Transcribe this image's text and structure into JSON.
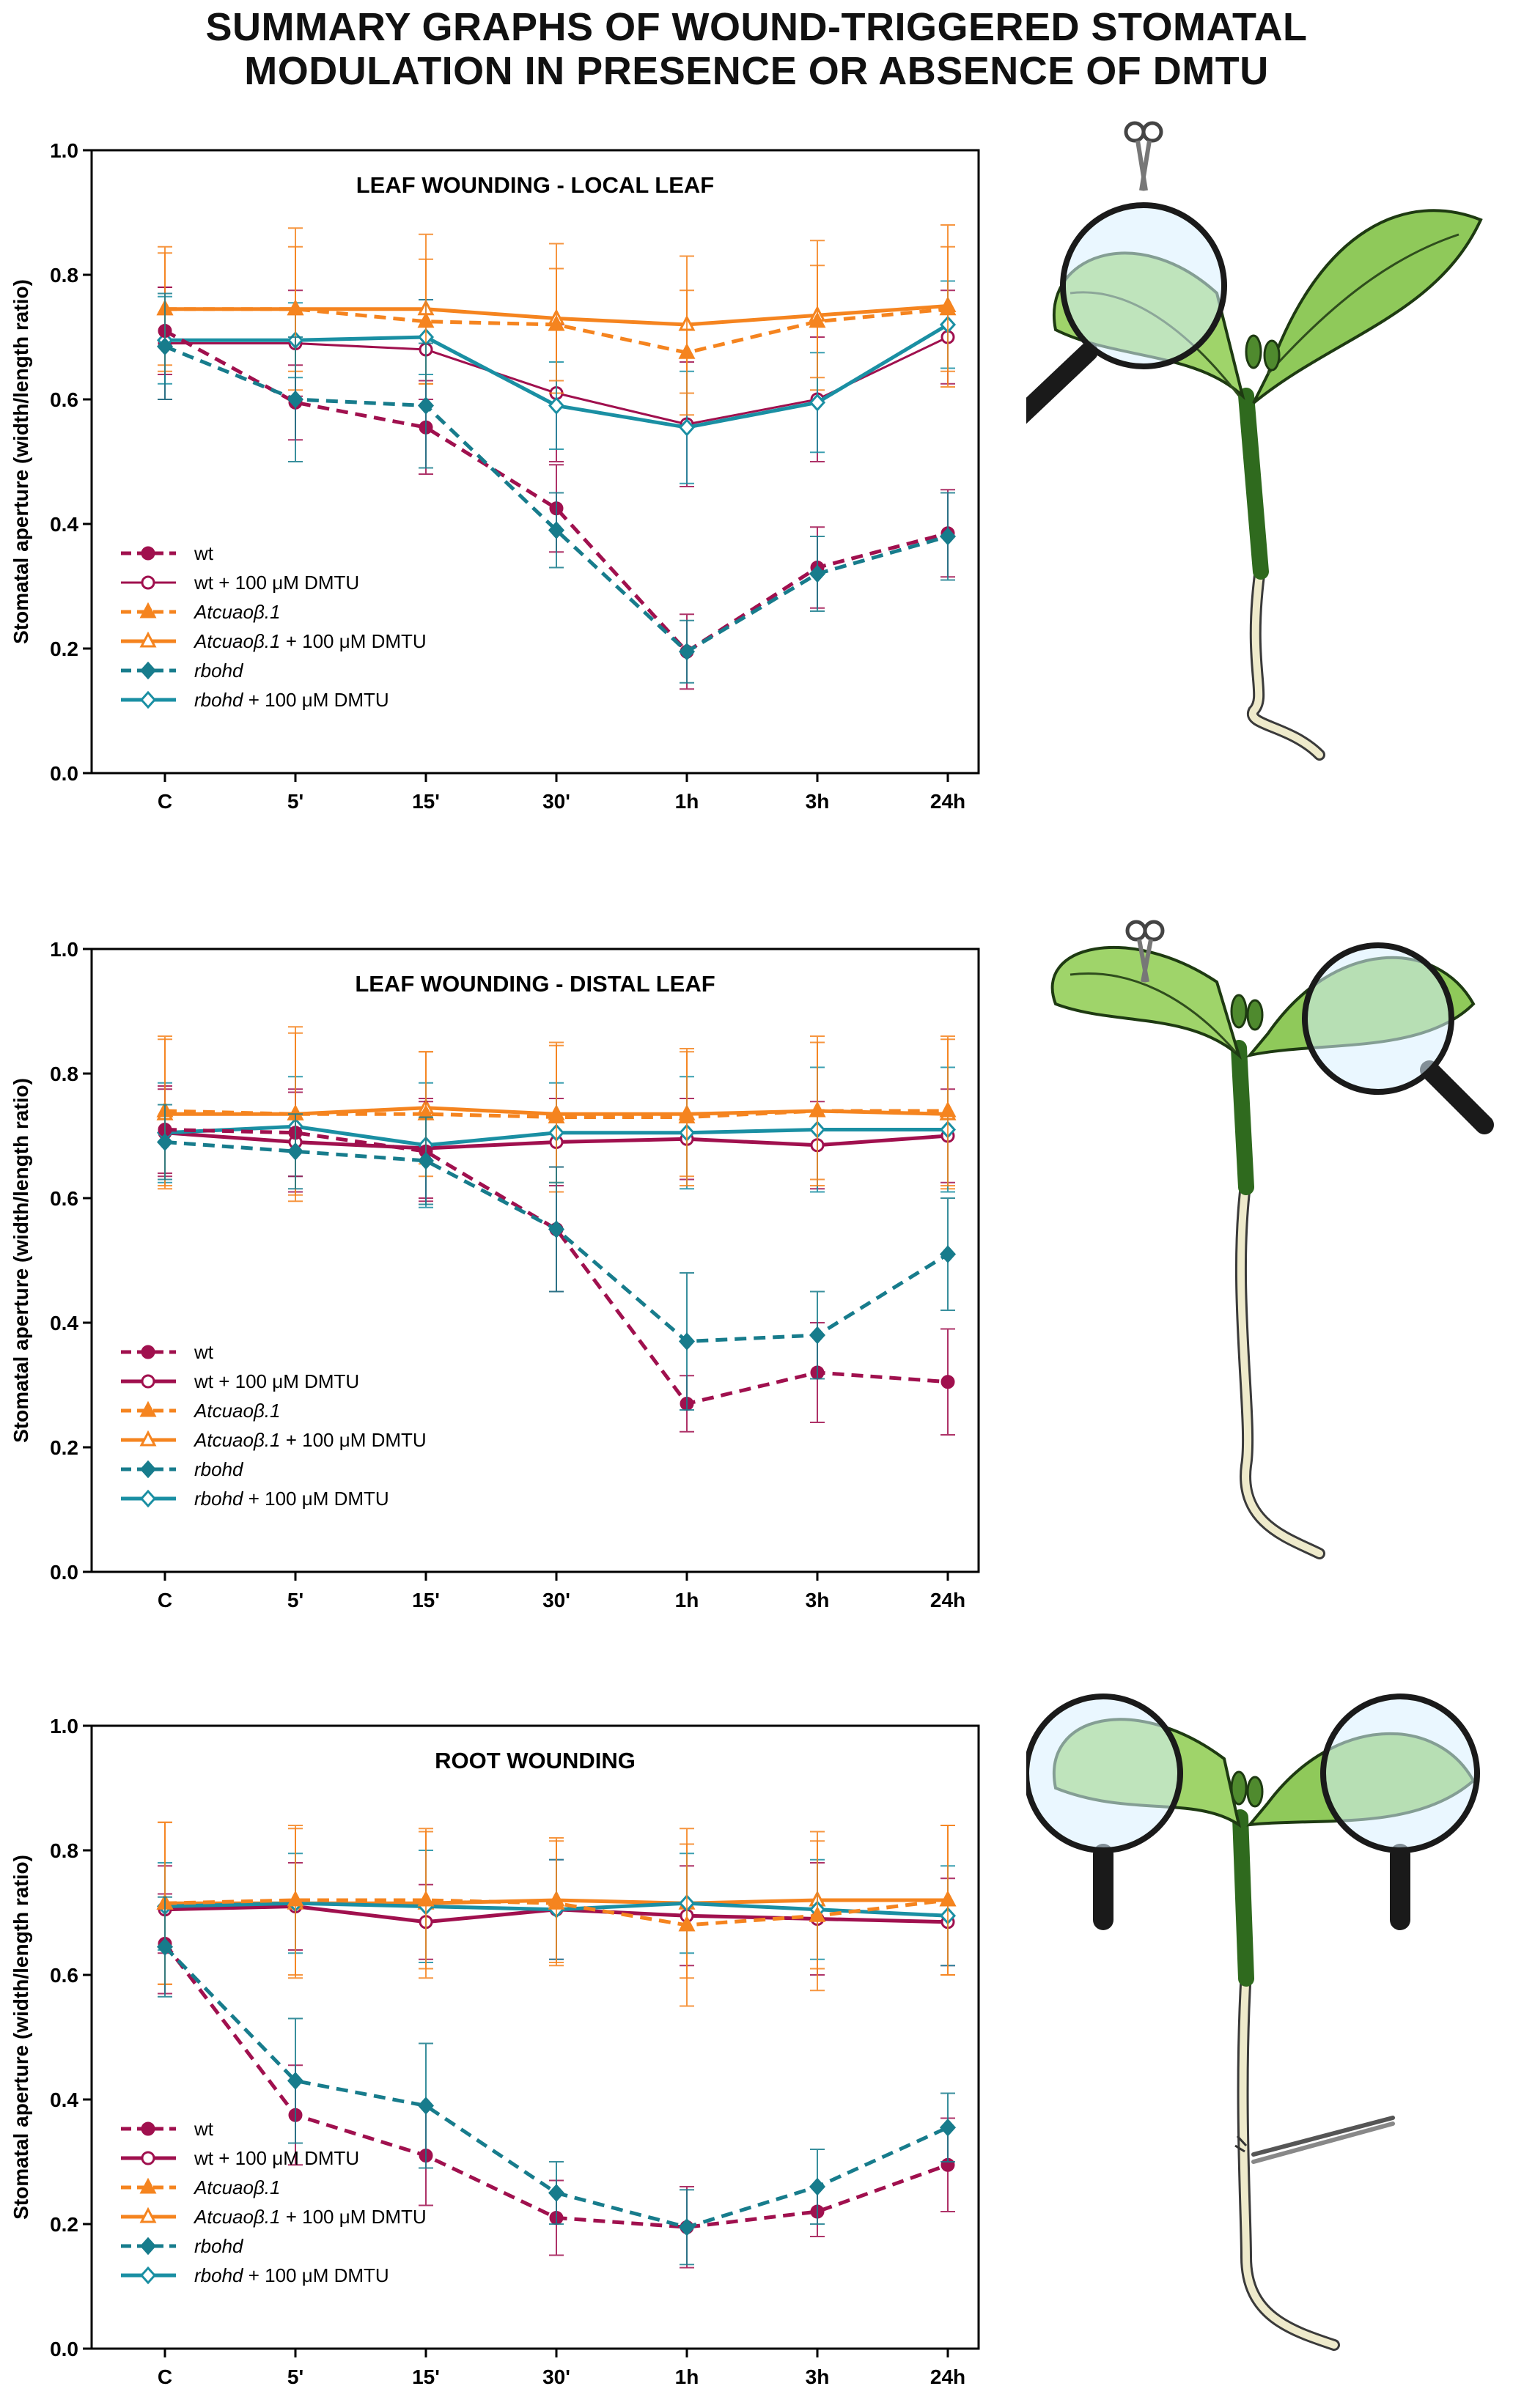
{
  "title": {
    "line1": "SUMMARY GRAPHS OF WOUND-TRIGGERED STOMATAL",
    "line2": "MODULATION IN PRESENCE OR ABSENCE OF DMTU"
  },
  "legend_labels": [
    {
      "key": "wt",
      "main": "wt",
      "suffix": "",
      "italic": false
    },
    {
      "key": "wt_dmtu",
      "main": "wt",
      "suffix": " + 100 μM DMTU",
      "italic": false
    },
    {
      "key": "cuao",
      "main": "Atcuaoβ.1",
      "suffix": "",
      "italic": true
    },
    {
      "key": "cuao_dmtu",
      "main": "Atcuaoβ.1",
      "suffix": " + 100 μM DMTU",
      "italic": true
    },
    {
      "key": "rbohd",
      "main": "rbohd",
      "suffix": "",
      "italic": true
    },
    {
      "key": "rbohd_dmtu",
      "main": "rbohd",
      "suffix": " + 100 μM DMTU",
      "italic": true
    }
  ],
  "colors": {
    "wt": "#a0104e",
    "cuao": "#f5841f",
    "rbohd": "#1a8fa3",
    "rbohd_dark": "#177c8c",
    "plant_green_light": "#9fd46a",
    "plant_green_dark": "#2f6a1e",
    "root": "#eeeacb",
    "root_tip": "#c9a882",
    "lens_glass": "#d9f0ff",
    "handle": "#1a1a1a"
  },
  "illustrations": [
    {
      "name": "local-leaf-wounding-illustration",
      "icons": [
        "seedling-icon",
        "magnifier-icon",
        "scissors-icon"
      ]
    },
    {
      "name": "distal-leaf-wounding-illustration",
      "icons": [
        "seedling-icon",
        "magnifier-icon",
        "scissors-icon"
      ]
    },
    {
      "name": "root-wounding-illustration",
      "icons": [
        "seedling-icon",
        "magnifier-icon",
        "magnifier-icon",
        "tweezers-icon"
      ]
    }
  ],
  "chart_data": [
    {
      "type": "line",
      "title": "LEAF WOUNDING - LOCAL LEAF",
      "xlabel": "",
      "ylabel": "Stomatal aperture (width/length ratio)",
      "categories": [
        "C",
        "5'",
        "15'",
        "30'",
        "1h",
        "3h",
        "24h"
      ],
      "ylim": [
        0,
        1.0
      ],
      "yticks": [
        "0.0",
        "0.2",
        "0.4",
        "0.6",
        "0.8",
        "1.0"
      ],
      "legend_position": "bottom-left",
      "series": [
        {
          "key": "wt",
          "name": "wt",
          "style": "dashed",
          "marker": "circle-filled",
          "values": [
            0.71,
            0.595,
            0.555,
            0.425,
            0.195,
            0.33,
            0.385
          ],
          "errors": [
            0.07,
            0.06,
            0.075,
            0.07,
            0.06,
            0.065,
            0.07
          ]
        },
        {
          "key": "wt_dmtu",
          "name": "wt + 100 μM DMTU",
          "style": "solid-thin",
          "marker": "circle-open",
          "values": [
            0.69,
            0.69,
            0.68,
            0.61,
            0.56,
            0.6,
            0.7
          ],
          "errors": [
            0.09,
            0.085,
            0.08,
            0.11,
            0.1,
            0.1,
            0.075
          ]
        },
        {
          "key": "cuao",
          "name": "Atcuaoβ.1",
          "style": "dashed",
          "marker": "triangle-filled",
          "values": [
            0.745,
            0.745,
            0.725,
            0.72,
            0.675,
            0.725,
            0.745
          ],
          "errors": [
            0.1,
            0.1,
            0.1,
            0.09,
            0.1,
            0.09,
            0.1
          ]
        },
        {
          "key": "cuao_dmtu",
          "name": "Atcuaoβ.1 + 100 μM DMTU",
          "style": "solid",
          "marker": "triangle-open",
          "values": [
            0.745,
            0.745,
            0.745,
            0.73,
            0.72,
            0.735,
            0.75
          ],
          "errors": [
            0.09,
            0.13,
            0.12,
            0.12,
            0.11,
            0.12,
            0.13
          ]
        },
        {
          "key": "rbohd",
          "name": "rbohd",
          "style": "dashed",
          "marker": "diamond-filled",
          "values": [
            0.685,
            0.6,
            0.59,
            0.39,
            0.195,
            0.32,
            0.38
          ],
          "errors": [
            0.085,
            0.1,
            0.1,
            0.06,
            0.05,
            0.06,
            0.07
          ]
        },
        {
          "key": "rbohd_dmtu",
          "name": "rbohd + 100 μM DMTU",
          "style": "solid",
          "marker": "diamond-open",
          "values": [
            0.695,
            0.695,
            0.7,
            0.59,
            0.555,
            0.595,
            0.72
          ],
          "errors": [
            0.07,
            0.06,
            0.06,
            0.07,
            0.09,
            0.08,
            0.07
          ]
        }
      ]
    },
    {
      "type": "line",
      "title": "LEAF WOUNDING - DISTAL LEAF",
      "xlabel": "",
      "ylabel": "Stomatal aperture (width/length ratio)",
      "categories": [
        "C",
        "5'",
        "15'",
        "30'",
        "1h",
        "3h",
        "24h"
      ],
      "ylim": [
        0,
        1.0
      ],
      "yticks": [
        "0.0",
        "0.2",
        "0.4",
        "0.6",
        "0.8",
        "1.0"
      ],
      "legend_position": "bottom-left",
      "series": [
        {
          "key": "wt",
          "name": "wt",
          "style": "dashed",
          "marker": "circle-filled",
          "values": [
            0.71,
            0.705,
            0.675,
            0.55,
            0.27,
            0.32,
            0.305
          ],
          "errors": [
            0.07,
            0.07,
            0.08,
            0.1,
            0.045,
            0.08,
            0.085
          ]
        },
        {
          "key": "wt_dmtu",
          "name": "wt + 100 μM DMTU",
          "style": "solid",
          "marker": "circle-open",
          "values": [
            0.705,
            0.69,
            0.68,
            0.69,
            0.695,
            0.685,
            0.7
          ],
          "errors": [
            0.07,
            0.08,
            0.08,
            0.07,
            0.065,
            0.07,
            0.075
          ]
        },
        {
          "key": "cuao",
          "name": "Atcuaoβ.1",
          "style": "dashed",
          "marker": "triangle-filled",
          "values": [
            0.74,
            0.735,
            0.735,
            0.73,
            0.73,
            0.74,
            0.74
          ],
          "errors": [
            0.12,
            0.14,
            0.1,
            0.12,
            0.11,
            0.12,
            0.12
          ]
        },
        {
          "key": "cuao_dmtu",
          "name": "Atcuaoβ.1 + 100 μM DMTU",
          "style": "solid",
          "marker": "triangle-open",
          "values": [
            0.735,
            0.735,
            0.745,
            0.735,
            0.735,
            0.74,
            0.735
          ],
          "errors": [
            0.12,
            0.13,
            0.09,
            0.11,
            0.1,
            0.11,
            0.12
          ]
        },
        {
          "key": "rbohd",
          "name": "rbohd",
          "style": "dashed",
          "marker": "diamond-filled",
          "values": [
            0.69,
            0.675,
            0.66,
            0.55,
            0.37,
            0.38,
            0.51
          ],
          "errors": [
            0.06,
            0.06,
            0.07,
            0.1,
            0.11,
            0.07,
            0.09
          ]
        },
        {
          "key": "rbohd_dmtu",
          "name": "rbohd + 100 μM DMTU",
          "style": "solid",
          "marker": "diamond-open",
          "values": [
            0.705,
            0.715,
            0.685,
            0.705,
            0.705,
            0.71,
            0.71
          ],
          "errors": [
            0.08,
            0.08,
            0.1,
            0.08,
            0.09,
            0.1,
            0.1
          ]
        }
      ]
    },
    {
      "type": "line",
      "title": "ROOT WOUNDING",
      "xlabel": "",
      "ylabel": "Stomatal aperture (width/length ratio)",
      "categories": [
        "C",
        "5'",
        "15'",
        "30'",
        "1h",
        "3h",
        "24h"
      ],
      "ylim": [
        0,
        1.0
      ],
      "yticks": [
        "0.0",
        "0.2",
        "0.4",
        "0.6",
        "0.8",
        "1.0"
      ],
      "legend_position": "bottom-left",
      "series": [
        {
          "key": "wt",
          "name": "wt",
          "style": "dashed",
          "marker": "circle-filled",
          "values": [
            0.65,
            0.375,
            0.31,
            0.21,
            0.195,
            0.22,
            0.295
          ],
          "errors": [
            0.08,
            0.08,
            0.08,
            0.06,
            0.065,
            0.04,
            0.075
          ]
        },
        {
          "key": "wt_dmtu",
          "name": "wt + 100 μM DMTU",
          "style": "solid",
          "marker": "circle-open",
          "values": [
            0.705,
            0.71,
            0.685,
            0.705,
            0.695,
            0.69,
            0.685
          ],
          "errors": [
            0.07,
            0.07,
            0.06,
            0.08,
            0.08,
            0.09,
            0.07
          ]
        },
        {
          "key": "cuao",
          "name": "Atcuaoβ.1",
          "style": "dashed",
          "marker": "triangle-filled",
          "values": [
            0.715,
            0.72,
            0.72,
            0.715,
            0.68,
            0.695,
            0.72
          ],
          "errors": [
            0.13,
            0.12,
            0.11,
            0.1,
            0.13,
            0.12,
            0.12
          ]
        },
        {
          "key": "cuao_dmtu",
          "name": "Atcuaoβ.1 + 100 μM DMTU",
          "style": "solid",
          "marker": "triangle-open",
          "values": [
            0.715,
            0.715,
            0.715,
            0.72,
            0.715,
            0.72,
            0.72
          ],
          "errors": [
            0.13,
            0.12,
            0.12,
            0.1,
            0.12,
            0.11,
            0.12
          ]
        },
        {
          "key": "rbohd",
          "name": "rbohd",
          "style": "dashed",
          "marker": "diamond-filled",
          "values": [
            0.645,
            0.43,
            0.39,
            0.25,
            0.195,
            0.26,
            0.355
          ],
          "errors": [
            0.08,
            0.1,
            0.1,
            0.05,
            0.06,
            0.06,
            0.055
          ]
        },
        {
          "key": "rbohd_dmtu",
          "name": "rbohd + 100 μM DMTU",
          "style": "solid",
          "marker": "diamond-open",
          "values": [
            0.71,
            0.715,
            0.71,
            0.705,
            0.715,
            0.705,
            0.695
          ],
          "errors": [
            0.07,
            0.08,
            0.09,
            0.08,
            0.08,
            0.08,
            0.08
          ]
        }
      ]
    }
  ]
}
